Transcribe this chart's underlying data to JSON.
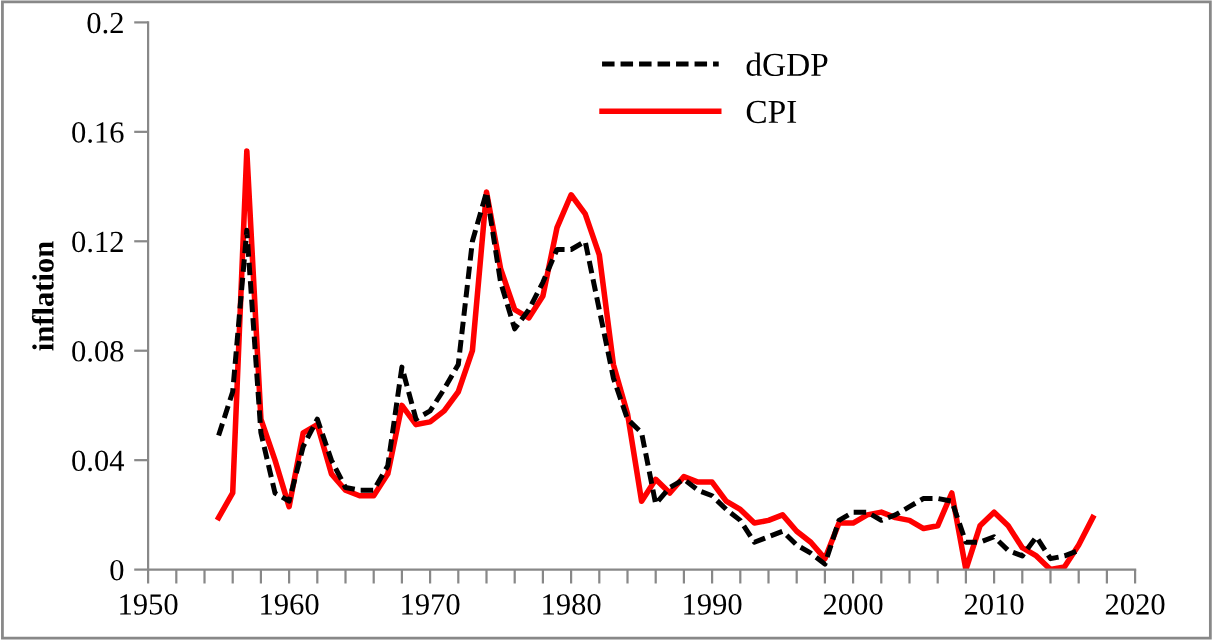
{
  "chart_data": {
    "type": "line",
    "ylabel": "inflation",
    "x": [
      1955,
      1956,
      1957,
      1958,
      1959,
      1960,
      1961,
      1962,
      1963,
      1964,
      1965,
      1966,
      1967,
      1968,
      1969,
      1970,
      1971,
      1972,
      1973,
      1974,
      1975,
      1976,
      1977,
      1978,
      1979,
      1980,
      1981,
      1982,
      1983,
      1984,
      1985,
      1986,
      1987,
      1988,
      1989,
      1990,
      1991,
      1992,
      1993,
      1994,
      1995,
      1996,
      1997,
      1998,
      1999,
      2000,
      2001,
      2002,
      2003,
      2004,
      2005,
      2006,
      2007,
      2008,
      2009,
      2010,
      2011,
      2012,
      2013,
      2014,
      2015,
      2016,
      2017
    ],
    "series": [
      {
        "name": "dGDP",
        "color": "#000000",
        "line_style": "dashed",
        "values": [
          0.049,
          0.065,
          0.124,
          0.05,
          0.028,
          0.025,
          0.045,
          0.055,
          0.04,
          0.03,
          0.029,
          0.029,
          0.038,
          0.074,
          0.055,
          0.058,
          0.066,
          0.075,
          0.12,
          0.138,
          0.105,
          0.088,
          0.095,
          0.105,
          0.117,
          0.117,
          0.12,
          0.095,
          0.07,
          0.055,
          0.05,
          0.024,
          0.03,
          0.033,
          0.029,
          0.027,
          0.022,
          0.018,
          0.01,
          0.012,
          0.014,
          0.009,
          0.006,
          0.002,
          0.018,
          0.021,
          0.021,
          0.018,
          0.02,
          0.023,
          0.026,
          0.026,
          0.025,
          0.01,
          0.01,
          0.012,
          0.007,
          0.005,
          0.012,
          0.004,
          0.005,
          0.007,
          null
        ]
      },
      {
        "name": "CPI",
        "color": "#ff0000",
        "line_style": "solid",
        "values": [
          0.019,
          0.028,
          0.153,
          0.055,
          0.04,
          0.023,
          0.05,
          0.053,
          0.035,
          0.029,
          0.027,
          0.027,
          0.035,
          0.06,
          0.053,
          0.054,
          0.058,
          0.065,
          0.08,
          0.138,
          0.11,
          0.095,
          0.092,
          0.1,
          0.125,
          0.137,
          0.13,
          0.115,
          0.075,
          0.057,
          0.025,
          0.033,
          0.028,
          0.034,
          0.032,
          0.032,
          0.025,
          0.022,
          0.017,
          0.018,
          0.02,
          0.014,
          0.01,
          0.004,
          0.017,
          0.017,
          0.02,
          0.021,
          0.019,
          0.018,
          0.015,
          0.016,
          0.028,
          0.0,
          0.016,
          0.021,
          0.016,
          0.008,
          0.005,
          0.0,
          0.001,
          0.009,
          0.019
        ]
      }
    ],
    "xlim": [
      1950,
      2020
    ],
    "xticks": [
      1950,
      {
        "value": 1952,
        "label": null
      },
      {
        "value": 1954,
        "label": null
      },
      {
        "value": 1956,
        "label": null
      },
      {
        "value": 1958,
        "label": null
      },
      1960,
      {
        "value": 1962,
        "label": null
      },
      {
        "value": 1964,
        "label": null
      },
      {
        "value": 1966,
        "label": null
      },
      {
        "value": 1968,
        "label": null
      },
      1970,
      {
        "value": 1972,
        "label": null
      },
      {
        "value": 1974,
        "label": null
      },
      {
        "value": 1976,
        "label": null
      },
      {
        "value": 1978,
        "label": null
      },
      1980,
      {
        "value": 1982,
        "label": null
      },
      {
        "value": 1984,
        "label": null
      },
      {
        "value": 1986,
        "label": null
      },
      {
        "value": 1988,
        "label": null
      },
      1990,
      {
        "value": 1992,
        "label": null
      },
      {
        "value": 1994,
        "label": null
      },
      {
        "value": 1996,
        "label": null
      },
      {
        "value": 1998,
        "label": null
      },
      2000,
      {
        "value": 2002,
        "label": null
      },
      {
        "value": 2004,
        "label": null
      },
      {
        "value": 2006,
        "label": null
      },
      {
        "value": 2008,
        "label": null
      },
      2010,
      {
        "value": 2012,
        "label": null
      },
      {
        "value": 2014,
        "label": null
      },
      {
        "value": 2016,
        "label": null
      },
      {
        "value": 2018,
        "label": null
      },
      2020
    ],
    "ylim": [
      0,
      0.2
    ],
    "yticks": [
      0,
      0.04,
      0.08,
      0.12,
      0.16,
      0.2
    ],
    "grid": false,
    "legend": "top right",
    "marker": "none"
  }
}
